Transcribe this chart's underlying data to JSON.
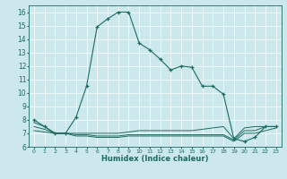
{
  "xlabel": "Humidex (Indice chaleur)",
  "bg_color": "#cde8ec",
  "grid_color": "#b8d8dc",
  "line_color": "#1a6b60",
  "xlim": [
    -0.5,
    23.5
  ],
  "ylim": [
    6,
    16.5
  ],
  "xticks": [
    0,
    1,
    2,
    3,
    4,
    5,
    6,
    7,
    8,
    9,
    10,
    11,
    12,
    13,
    14,
    15,
    16,
    17,
    18,
    19,
    20,
    21,
    22,
    23
  ],
  "yticks": [
    6,
    7,
    8,
    9,
    10,
    11,
    12,
    13,
    14,
    15,
    16
  ],
  "main_x": [
    0,
    1,
    2,
    3,
    4,
    5,
    6,
    7,
    8,
    9,
    10,
    11,
    12,
    13,
    14,
    15,
    16,
    17,
    18,
    19,
    20,
    21,
    22,
    23
  ],
  "main_y": [
    8.0,
    7.5,
    7.0,
    7.0,
    8.2,
    10.5,
    14.9,
    15.5,
    16.0,
    16.0,
    13.7,
    13.2,
    12.5,
    11.7,
    12.0,
    11.9,
    10.5,
    10.5,
    9.9,
    6.6,
    6.4,
    6.7,
    7.5,
    7.5
  ],
  "flat1_x": [
    0,
    1,
    2,
    3,
    4,
    5,
    6,
    7,
    8,
    9,
    10,
    11,
    12,
    13,
    14,
    15,
    16,
    17,
    18,
    19,
    20,
    21,
    22,
    23
  ],
  "flat1_y": [
    7.8,
    7.5,
    7.0,
    7.0,
    7.0,
    7.0,
    7.0,
    7.0,
    7.0,
    7.1,
    7.2,
    7.2,
    7.2,
    7.2,
    7.2,
    7.2,
    7.3,
    7.4,
    7.5,
    6.6,
    7.4,
    7.5,
    7.5,
    7.5
  ],
  "flat2_x": [
    0,
    1,
    2,
    3,
    4,
    5,
    6,
    7,
    8,
    9,
    10,
    11,
    12,
    13,
    14,
    15,
    16,
    17,
    18,
    19,
    20,
    21,
    22,
    23
  ],
  "flat2_y": [
    7.5,
    7.3,
    7.0,
    7.0,
    6.9,
    6.9,
    6.8,
    6.8,
    6.8,
    6.9,
    6.9,
    6.9,
    6.9,
    6.9,
    6.9,
    6.9,
    6.9,
    6.9,
    6.9,
    6.5,
    7.2,
    7.2,
    7.5,
    7.5
  ],
  "flat3_x": [
    0,
    1,
    2,
    3,
    4,
    5,
    6,
    7,
    8,
    9,
    10,
    11,
    12,
    13,
    14,
    15,
    16,
    17,
    18,
    19,
    20,
    21,
    22,
    23
  ],
  "flat3_y": [
    7.2,
    7.1,
    7.0,
    7.0,
    6.8,
    6.8,
    6.7,
    6.7,
    6.7,
    6.8,
    6.8,
    6.8,
    6.8,
    6.8,
    6.8,
    6.8,
    6.8,
    6.8,
    6.8,
    6.4,
    7.0,
    7.0,
    7.2,
    7.4
  ]
}
